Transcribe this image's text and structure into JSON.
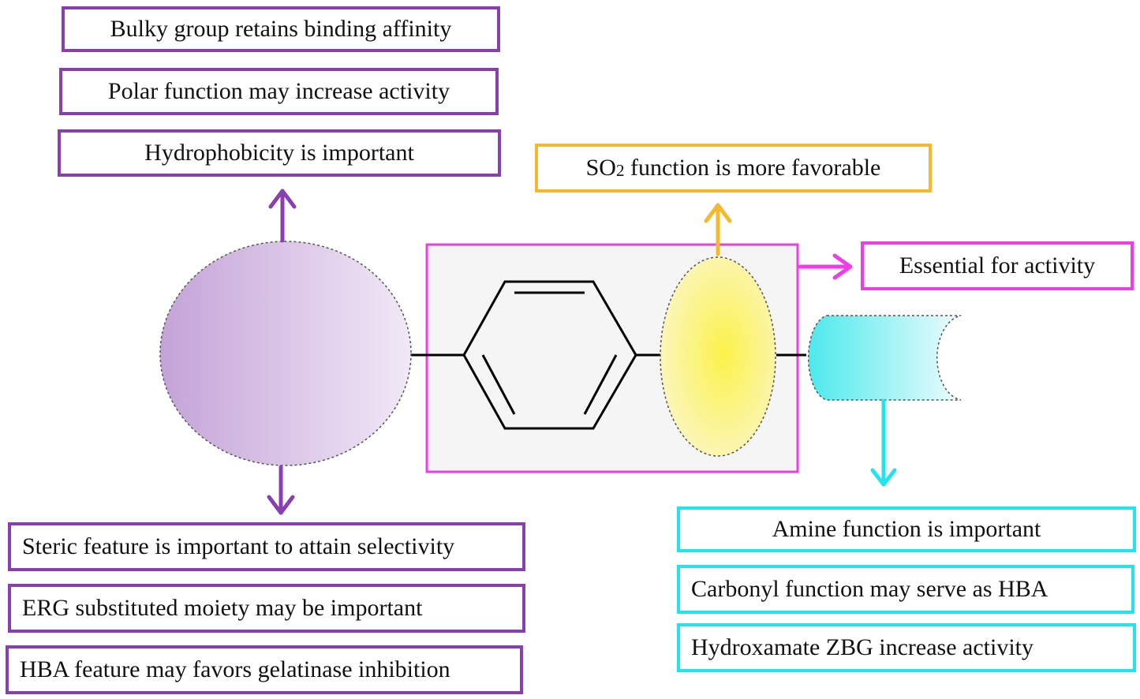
{
  "colors": {
    "purple": "#8a3fb0",
    "yellow": "#f5b82e",
    "magenta": "#f03ce8",
    "cyan": "#23e3ec"
  },
  "top_left_boxes": [
    "Bulky group retains binding affinity",
    "Polar function may increase activity",
    "Hydrophobicity is important"
  ],
  "bottom_left_boxes": [
    "Steric feature is important to attain selectivity",
    "ERG substituted moiety may be important",
    "HBA feature may favors gelatinase inhibition"
  ],
  "so2_box": {
    "prefix": "SO",
    "subscript": "2",
    "suffix": " function is more favorable"
  },
  "essential_box": "Essential for activity",
  "bottom_right_boxes": [
    "Amine function is important",
    "Carbonyl function may serve as HBA",
    "Hydroxamate ZBG increase activity"
  ]
}
